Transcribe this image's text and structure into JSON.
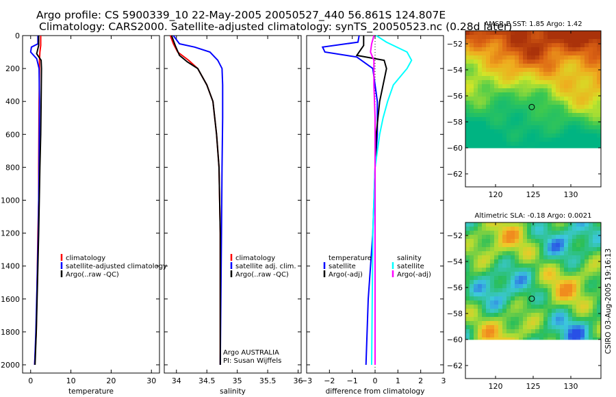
{
  "header": {
    "line1": "Argo profile: CS 5900339_10 22-May-2005 20050527_440 56.861S 124.807E",
    "line2": "Climatology: CARS2000. Satellite-adjusted climatology: synTS_20050523.nc (0.28d later)"
  },
  "side_text": "CSIRO 03-Aug-2005 19:16:13",
  "colors": {
    "climatology": "#ff0000",
    "satellite": "#0000ff",
    "argo": "#000000",
    "salinity_satellite": "#00ffff",
    "salinity_argo": "#ff00ff"
  },
  "chart_data": [
    {
      "id": "temperature",
      "type": "line",
      "xlabel": "temperature",
      "xlim": [
        -2,
        32
      ],
      "ylim": [
        2050,
        0
      ],
      "xticks": [
        0,
        10,
        20,
        30
      ],
      "yticks": [
        0,
        200,
        400,
        600,
        800,
        1000,
        1200,
        1400,
        1600,
        1800,
        2000
      ],
      "legend": [
        "climatology",
        "satellite-adjusted climatology",
        "Argo(..raw -QC)"
      ],
      "series": [
        {
          "name": "climatology",
          "color": "#ff0000",
          "x": [
            2.5,
            2.5,
            2.3,
            2.2,
            2.2,
            2.1,
            2.0,
            2.0,
            1.8,
            1.6,
            1.4,
            1.0
          ],
          "y": [
            0,
            60,
            100,
            150,
            200,
            400,
            800,
            1000,
            1200,
            1500,
            1800,
            2000
          ]
        },
        {
          "name": "satellite-adjusted climatology",
          "color": "#0000ff",
          "x": [
            1.8,
            1.8,
            0.2,
            0.0,
            1.5,
            2.1,
            2.2,
            2.1,
            1.9,
            1.6,
            1.3,
            1.0
          ],
          "y": [
            0,
            50,
            70,
            100,
            140,
            200,
            400,
            800,
            1200,
            1500,
            1800,
            2000
          ]
        },
        {
          "name": "Argo(..raw -QC)",
          "color": "#000000",
          "x": [
            2.0,
            2.0,
            1.5,
            2.6,
            2.7,
            2.6,
            2.5,
            2.3,
            2.0,
            1.7,
            1.4,
            1.1
          ],
          "y": [
            0,
            60,
            110,
            150,
            200,
            400,
            600,
            800,
            1200,
            1500,
            1800,
            2000
          ]
        }
      ]
    },
    {
      "id": "salinity",
      "type": "line",
      "xlabel": "salinity",
      "xlim": [
        33.8,
        36.05
      ],
      "ylim": [
        2050,
        0
      ],
      "xticks": [
        34,
        34.5,
        35,
        35.5,
        36
      ],
      "legend": [
        "climatology",
        "satellite adj. clim.",
        "Argo(..raw -QC)"
      ],
      "annotations": [
        "Argo AUSTRALIA",
        "PI: Susan Wijffels"
      ],
      "series": [
        {
          "name": "climatology",
          "color": "#ff0000",
          "x": [
            33.9,
            33.95,
            34.02,
            34.2,
            34.35,
            34.5,
            34.6,
            34.66,
            34.7,
            34.72,
            34.72
          ],
          "y": [
            0,
            50,
            100,
            150,
            200,
            300,
            400,
            600,
            800,
            1200,
            2000
          ]
        },
        {
          "name": "satellite adj. clim.",
          "color": "#0000ff",
          "x": [
            33.95,
            34.05,
            34.3,
            34.55,
            34.68,
            34.75,
            34.76,
            34.76,
            34.75,
            34.74,
            34.72
          ],
          "y": [
            0,
            50,
            70,
            100,
            150,
            200,
            300,
            500,
            800,
            1200,
            2000
          ]
        },
        {
          "name": "Argo(..raw -QC)",
          "color": "#000000",
          "x": [
            33.92,
            33.98,
            34.05,
            34.18,
            34.35,
            34.5,
            34.6,
            34.66,
            34.7,
            34.72,
            34.72
          ],
          "y": [
            0,
            60,
            120,
            160,
            200,
            300,
            400,
            600,
            800,
            1200,
            2000
          ]
        }
      ]
    },
    {
      "id": "difference",
      "type": "line",
      "xlabel": "difference from climatology",
      "xlim": [
        -3,
        3
      ],
      "ylim": [
        2050,
        0
      ],
      "xticks": [
        -3,
        -2,
        -1,
        0,
        1,
        2,
        3
      ],
      "legend_left": [
        "temperature",
        "satellite",
        "Argo(-adj)"
      ],
      "legend_right": [
        "salinity",
        "satellite",
        "Argo(-adj)"
      ],
      "series": [
        {
          "name": "temperature satellite",
          "color": "#0000ff",
          "x": [
            -0.7,
            -0.75,
            -2.3,
            -2.2,
            -0.8,
            -0.1,
            0.1,
            0.1,
            0.0,
            -0.1,
            -0.3,
            -0.4
          ],
          "y": [
            0,
            40,
            70,
            100,
            130,
            200,
            400,
            600,
            800,
            1200,
            1600,
            2000
          ]
        },
        {
          "name": "temperature Argo(-adj)",
          "color": "#000000",
          "x": [
            -0.5,
            -0.5,
            -0.8,
            0.4,
            0.5,
            0.35,
            0.2,
            0.05,
            0.0,
            0.0,
            0.0,
            0.0
          ],
          "y": [
            0,
            60,
            120,
            150,
            200,
            300,
            400,
            600,
            800,
            1200,
            1600,
            2000
          ]
        },
        {
          "name": "salinity satellite",
          "color": "#00ffff",
          "x": [
            0.05,
            0.5,
            1.4,
            1.6,
            1.4,
            0.8,
            0.55,
            0.35,
            0.2,
            0.0,
            -0.1,
            -0.15
          ],
          "y": [
            0,
            40,
            100,
            150,
            200,
            300,
            400,
            500,
            600,
            800,
            1200,
            2000
          ]
        },
        {
          "name": "salinity Argo(-adj)",
          "color": "#ff00ff",
          "x": [
            -0.05,
            -0.15,
            -0.2,
            -0.05,
            -0.05,
            0.0,
            0.0,
            0.0
          ],
          "y": [
            0,
            50,
            100,
            150,
            300,
            500,
            800,
            2000
          ]
        }
      ]
    },
    {
      "id": "amsr_sst",
      "type": "heatmap",
      "title": "AMSR-E SST: 1.85 Argo: 1.42",
      "xlim": [
        116,
        134
      ],
      "ylim": [
        -63,
        -51
      ],
      "xticks": [
        120,
        125,
        130
      ],
      "yticks": [
        -52,
        -54,
        -56,
        -58,
        -60,
        -62
      ],
      "data_lat_range": [
        -60,
        -51
      ],
      "marker": {
        "lon": 124.807,
        "lat": -56.861
      }
    },
    {
      "id": "altimetric_sla",
      "type": "heatmap",
      "title": "Altimetric SLA: -0.18 Argo: 0.0021",
      "xlim": [
        116,
        134
      ],
      "ylim": [
        -63,
        -51
      ],
      "xticks": [
        120,
        125,
        130
      ],
      "yticks": [
        -52,
        -54,
        -56,
        -58,
        -60,
        -62
      ],
      "data_lat_range": [
        -60,
        -51
      ],
      "marker": {
        "lon": 124.807,
        "lat": -56.861
      }
    }
  ]
}
